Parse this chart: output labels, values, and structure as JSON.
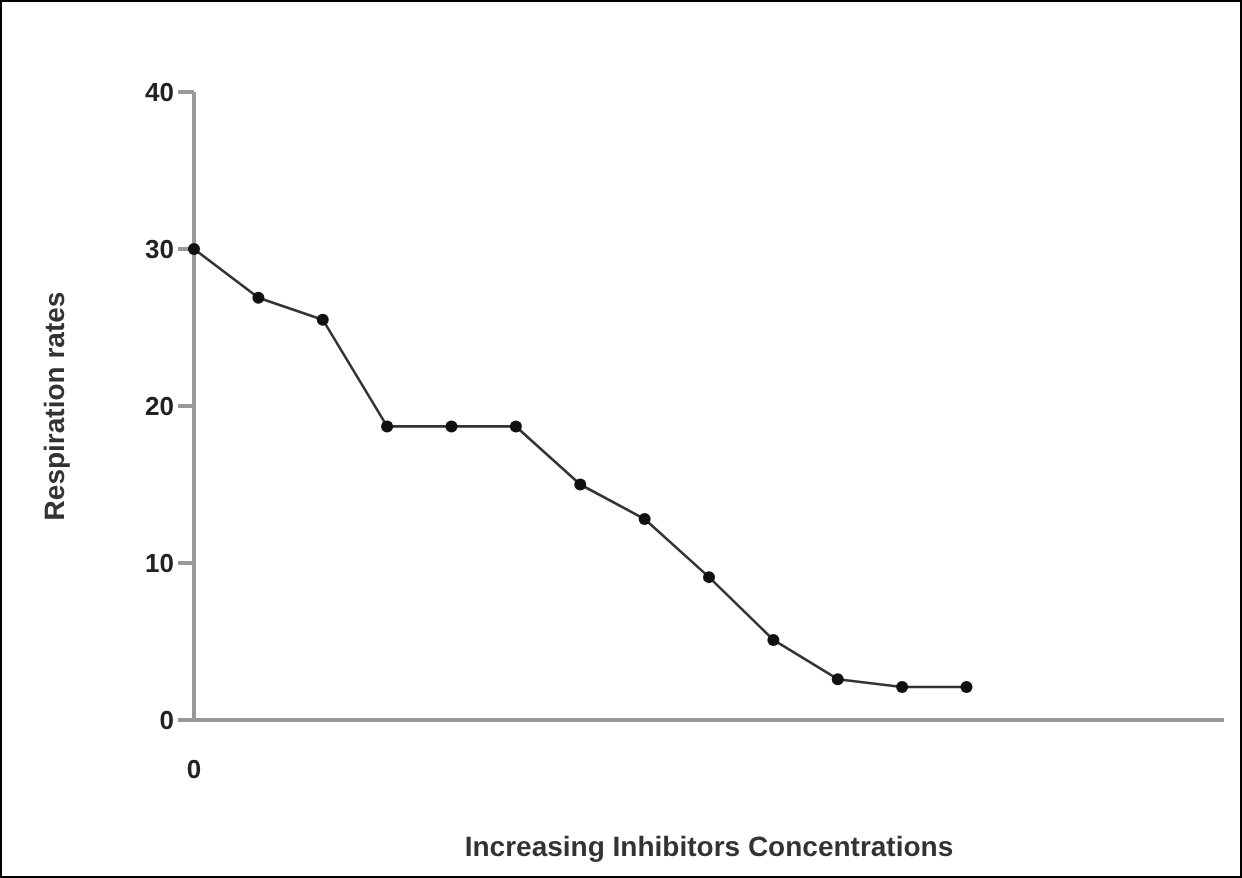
{
  "chart_data": {
    "type": "line",
    "xlabel": "Increasing Inhibitors Concentrations",
    "ylabel": "Respiration rates",
    "categories": [
      "0",
      null,
      null,
      null,
      null,
      null,
      null,
      null,
      null,
      null,
      null,
      null,
      null,
      null,
      null,
      null,
      null
    ],
    "series": [
      {
        "color": "#333333",
        "values": [
          30,
          26.9,
          25.5,
          18.7,
          18.7,
          18.7,
          15,
          12.8,
          9.1,
          5.1,
          2.6,
          2.1,
          2.1,
          null,
          null,
          null,
          null
        ]
      }
    ],
    "ylim": [
      0,
      40
    ],
    "yticks": [
      0,
      10,
      20,
      30,
      40
    ],
    "grid": false,
    "legend": false,
    "marker": "circle",
    "line_style": "solid"
  }
}
